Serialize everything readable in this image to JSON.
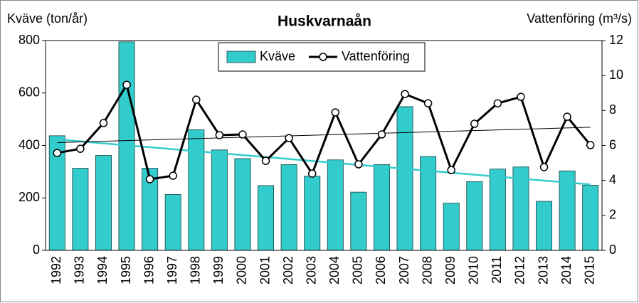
{
  "chart_data": {
    "type": "bar-line",
    "title": "Huskvarnaån",
    "y_label": "Kväve (ton/år)",
    "y2_label": "Vattenföring (m³/s)",
    "categories": [
      "1992",
      "1993",
      "1994",
      "1995",
      "1996",
      "1997",
      "1998",
      "1999",
      "2000",
      "2001",
      "2002",
      "2003",
      "2004",
      "2005",
      "2006",
      "2007",
      "2008",
      "2009",
      "2010",
      "2011",
      "2012",
      "2013",
      "2014",
      "2015"
    ],
    "series": [
      {
        "name": "Kväve",
        "type": "bar",
        "color": "#33cccc",
        "trendline": true,
        "values": [
          437,
          313,
          362,
          795,
          313,
          213,
          460,
          383,
          350,
          247,
          327,
          283,
          345,
          222,
          327,
          548,
          358,
          180,
          262,
          310,
          318,
          187,
          303,
          248
        ]
      },
      {
        "name": "Vattenföring",
        "type": "line",
        "axis": "y2",
        "color": "#000000",
        "trendline": true,
        "values": [
          5.57,
          5.81,
          7.28,
          9.47,
          4.07,
          4.27,
          8.62,
          6.59,
          6.63,
          5.12,
          6.42,
          4.39,
          7.89,
          4.92,
          6.63,
          8.94,
          8.41,
          4.59,
          7.24,
          8.41,
          8.78,
          4.76,
          7.64,
          6.02
        ]
      }
    ],
    "ylim": [
      0,
      800
    ],
    "yticks": [
      0,
      200,
      400,
      600,
      800
    ],
    "y2lim": [
      0,
      12
    ],
    "y2ticks": [
      0,
      2,
      4,
      6,
      8,
      10,
      12
    ],
    "legend": "top-center"
  }
}
